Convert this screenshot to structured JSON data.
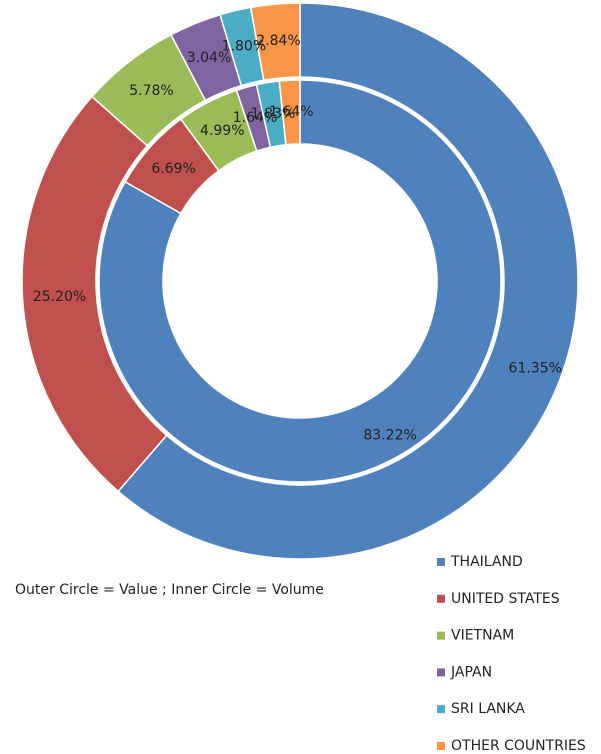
{
  "chart_data": {
    "type": "donut",
    "categories": [
      "THAILAND",
      "UNITED STATES",
      "VIETNAM",
      "JAPAN",
      "SRI LANKA",
      "OTHER COUNTRIES"
    ],
    "colors": [
      "#4f81bd",
      "#c0504d",
      "#9bbb59",
      "#8064a2",
      "#4bacc6",
      "#f79646"
    ],
    "series": [
      {
        "values": [
          61.35,
          25.2,
          5.78,
          3.04,
          1.8,
          2.84
        ],
        "value_labels": [
          "61.35%",
          "25.20%",
          "5.78%",
          "3.04%",
          "1.80%",
          "2.84%"
        ]
      },
      {
        "values": [
          83.22,
          6.69,
          4.99,
          1.64,
          1.83,
          1.64
        ],
        "value_labels": [
          "83.22%",
          "6.69%",
          "4.99%",
          "1.64%",
          "1.83%",
          "1.64%"
        ]
      }
    ],
    "annotation": "Outer Circle = Value ; Inner Circle = Volume",
    "legend": "bottom-right"
  }
}
